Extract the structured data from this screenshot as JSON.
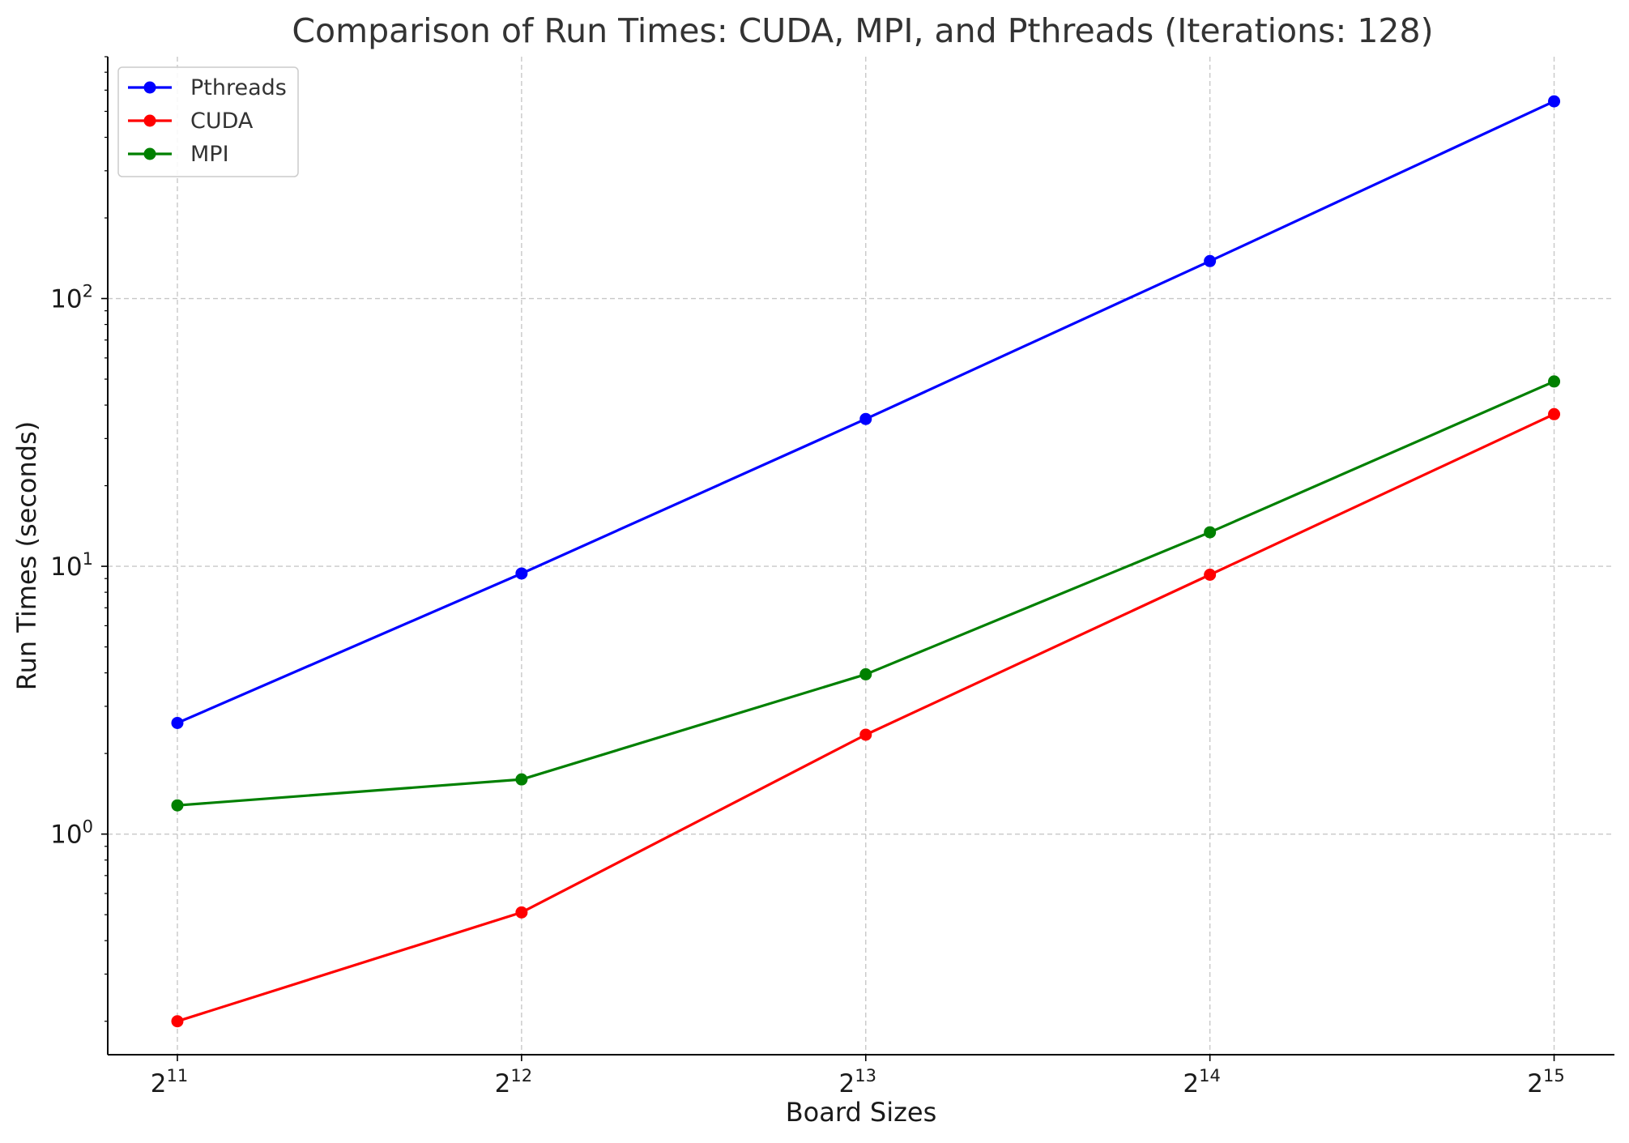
{
  "chart_data": {
    "type": "line",
    "title": "Comparison of Run Times: CUDA, MPI, and Pthreads (Iterations: 128)",
    "xlabel": "Board Sizes",
    "ylabel": "Run Times (seconds)",
    "x_scale": "log2",
    "y_scale": "log10",
    "x": [
      2048,
      4096,
      8192,
      16384,
      32768
    ],
    "x_tick_labels": [
      {
        "base": "2",
        "exp": "11"
      },
      {
        "base": "2",
        "exp": "12"
      },
      {
        "base": "2",
        "exp": "13"
      },
      {
        "base": "2",
        "exp": "14"
      },
      {
        "base": "2",
        "exp": "15"
      }
    ],
    "y_ticks": [
      {
        "value": 1,
        "base": "10",
        "exp": "0"
      },
      {
        "value": 10,
        "base": "10",
        "exp": "1"
      },
      {
        "value": 100,
        "base": "10",
        "exp": "2"
      }
    ],
    "ylim": [
      0.15,
      800
    ],
    "xlim": [
      1780,
      37000
    ],
    "grid": true,
    "legend_position": "top-left",
    "series": [
      {
        "name": "Pthreads",
        "color": "#0000ff",
        "values": [
          2.6,
          9.4,
          35.5,
          138,
          545
        ]
      },
      {
        "name": "CUDA",
        "color": "#ff0000",
        "values": [
          0.2,
          0.51,
          2.35,
          9.3,
          37
        ]
      },
      {
        "name": "MPI",
        "color": "#008000",
        "values": [
          1.28,
          1.6,
          3.95,
          13.4,
          49
        ]
      }
    ]
  }
}
